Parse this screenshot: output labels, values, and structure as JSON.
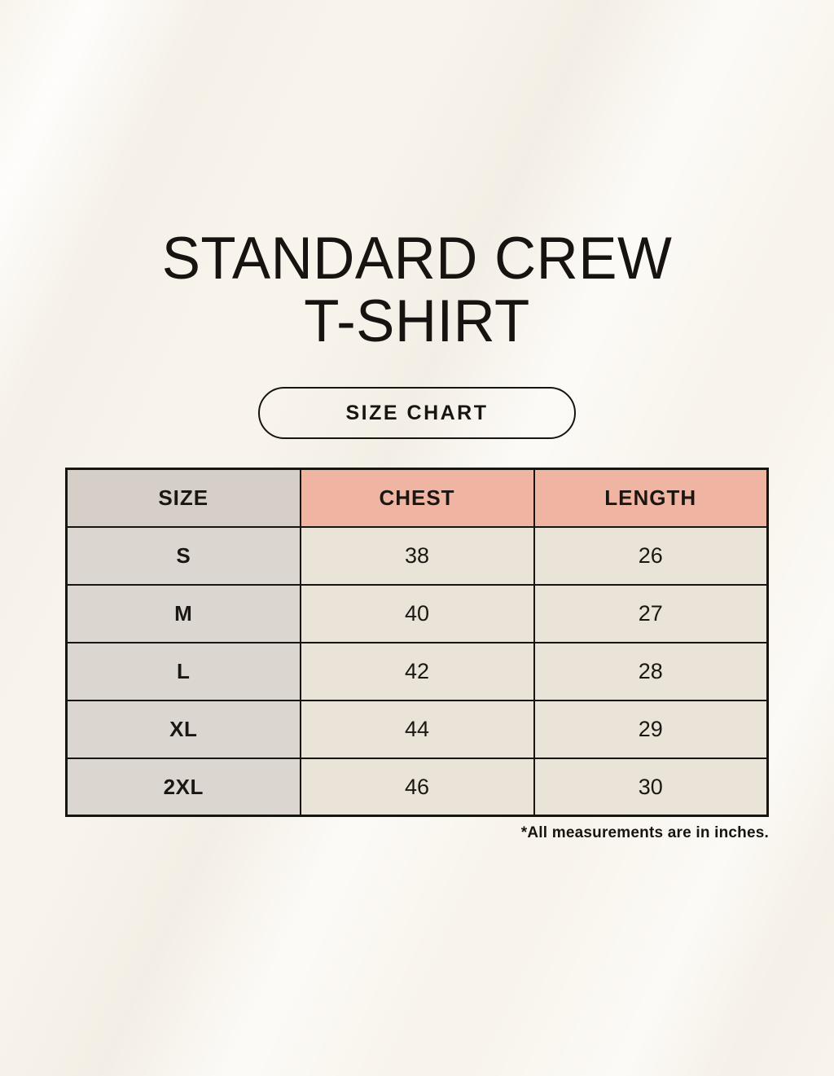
{
  "header": {
    "title_line1": "STANDARD CREW",
    "title_line2": "T-SHIRT",
    "badge_label": "SIZE CHART"
  },
  "footer": {
    "note": "*All measurements are in inches."
  },
  "colors": {
    "page_background": "#f8f4ec",
    "table_border": "#17150f",
    "size_header_bg": "#d5cfc8",
    "measure_header_bg": "#f0b4a3",
    "size_column_bg": "#dcd6d0",
    "value_cell_bg": "#eae3d7",
    "text": "#17150f"
  },
  "chart_data": {
    "type": "table",
    "title": "STANDARD CREW T-SHIRT",
    "subtitle": "SIZE CHART",
    "columns": [
      "SIZE",
      "CHEST",
      "LENGTH"
    ],
    "rows": [
      [
        "S",
        38,
        26
      ],
      [
        "M",
        40,
        27
      ],
      [
        "L",
        42,
        28
      ],
      [
        "XL",
        44,
        29
      ],
      [
        "2XL",
        46,
        30
      ]
    ],
    "units": "inches"
  }
}
